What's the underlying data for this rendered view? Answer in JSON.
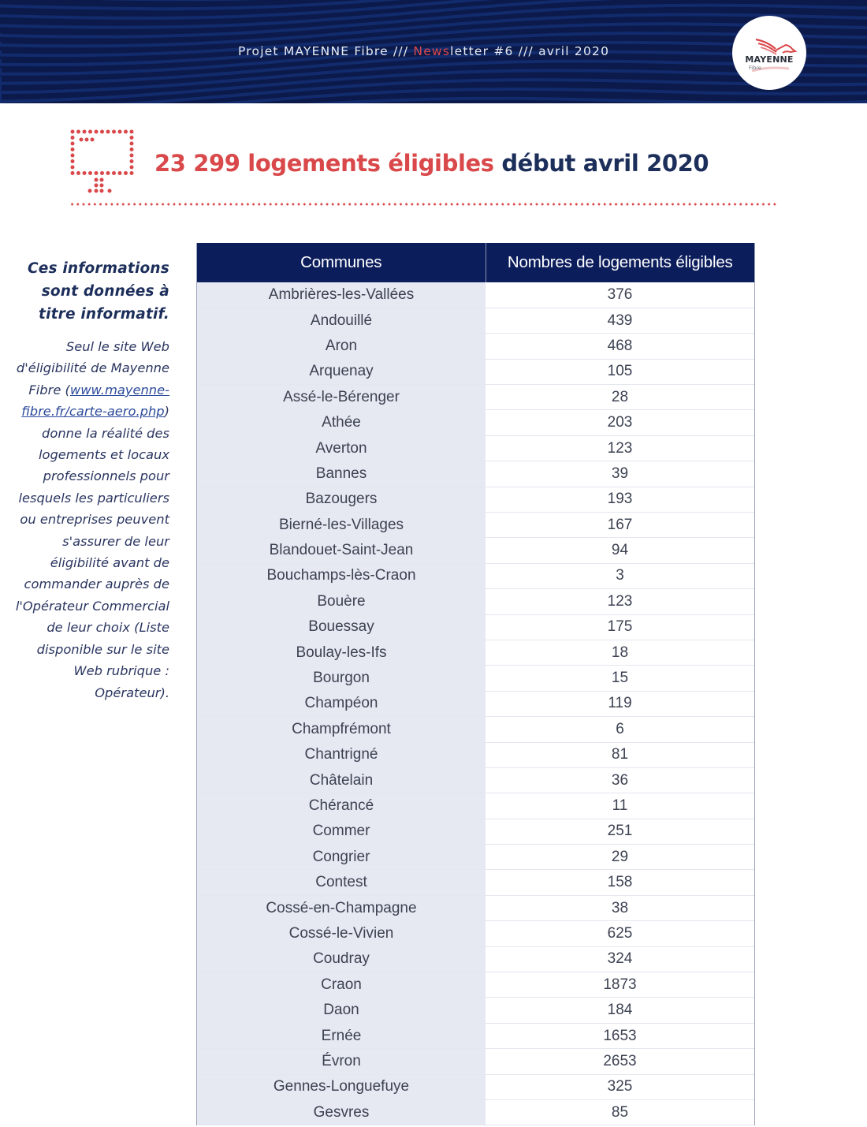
{
  "banner": {
    "title_prefix": "Projet MAYENNE Fibre /// ",
    "title_accent": "News",
    "title_suffix": "letter #6 /// avril 2020",
    "colors": {
      "background": "#0b1a4a",
      "accent": "#d9484a"
    }
  },
  "logo": {
    "name": "MAYENNE",
    "sub": "Fibre"
  },
  "headline": {
    "count": "23 299",
    "highlight": "logements éligibles",
    "suffix": "début avril 2020",
    "colors": {
      "red": "#d9484a",
      "blue": "#1c2e5a"
    }
  },
  "side_note": {
    "lead": "Ces informations sont données à titre informatif.",
    "body_before_link": "Seul le site Web d'éligibilité de Mayenne Fibre (",
    "link_text": "www.mayenne-fibre.fr/carte-aero.php",
    "body_after_link": ") donne la réalité des logements et locaux professionnels pour lesquels les particuliers ou entreprises peuvent s'assurer de leur éligibilité avant de commander auprès de l'Opérateur Commercial de leur choix (Liste disponible sur le site Web rubrique : Opérateur)."
  },
  "table": {
    "headers": [
      "Communes",
      "Nombres de logements éligibles"
    ],
    "rows": [
      [
        "Ambrières-les-Vallées",
        "376"
      ],
      [
        "Andouillé",
        "439"
      ],
      [
        "Aron",
        "468"
      ],
      [
        "Arquenay",
        "105"
      ],
      [
        "Assé-le-Bérenger",
        "28"
      ],
      [
        "Athée",
        "203"
      ],
      [
        "Averton",
        "123"
      ],
      [
        "Bannes",
        "39"
      ],
      [
        "Bazougers",
        "193"
      ],
      [
        "Bierné-les-Villages",
        "167"
      ],
      [
        "Blandouet-Saint-Jean",
        "94"
      ],
      [
        "Bouchamps-lès-Craon",
        "3"
      ],
      [
        "Bouère",
        "123"
      ],
      [
        "Bouessay",
        "175"
      ],
      [
        "Boulay-les-Ifs",
        "18"
      ],
      [
        "Bourgon",
        "15"
      ],
      [
        "Champéon",
        "119"
      ],
      [
        "Champfrémont",
        "6"
      ],
      [
        "Chantrigné",
        "81"
      ],
      [
        "Châtelain",
        "36"
      ],
      [
        "Chérancé",
        "11"
      ],
      [
        "Commer",
        "251"
      ],
      [
        "Congrier",
        "29"
      ],
      [
        "Contest",
        "158"
      ],
      [
        "Cossé-en-Champagne",
        "38"
      ],
      [
        "Cossé-le-Vivien",
        "625"
      ],
      [
        "Coudray",
        "324"
      ],
      [
        "Craon",
        "1873"
      ],
      [
        "Daon",
        "184"
      ],
      [
        "Ernée",
        "1653"
      ],
      [
        "Évron",
        "2653"
      ],
      [
        "Gennes-Longuefuye",
        "325"
      ],
      [
        "Gesvres",
        "85"
      ]
    ]
  }
}
